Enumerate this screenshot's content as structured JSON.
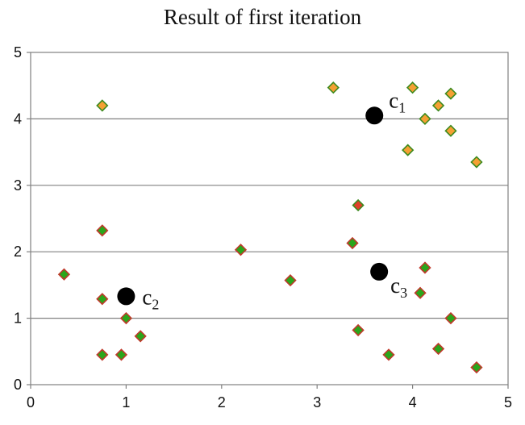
{
  "chart_data": {
    "type": "scatter",
    "title": "Result of first iteration",
    "xlabel": "",
    "ylabel": "",
    "xlim": [
      0,
      5
    ],
    "ylim": [
      0,
      5
    ],
    "xticks": [
      "0",
      "1",
      "2",
      "3",
      "4",
      "5"
    ],
    "yticks": [
      "0",
      "1",
      "2",
      "3",
      "4",
      "5"
    ],
    "grid": "horizontal",
    "colors": {
      "cluster1_fill": "#f5a033",
      "cluster1_edge": "#3c8a1e",
      "cluster2_fill": "#2aa61b",
      "cluster2_edge": "#c0392b",
      "cluster3_fill": "#2aa61b",
      "cluster3_edge": "#c0392b",
      "cluster3_alt_fill": "#e0402a",
      "cluster3_alt_edge": "#3c8a1e",
      "centroid": "#000000",
      "grid": "#808080"
    },
    "series": [
      {
        "cluster": "c1",
        "marker": "diamond",
        "points": [
          [
            0.75,
            4.2
          ],
          [
            3.17,
            4.47
          ],
          [
            4.0,
            4.47
          ],
          [
            4.27,
            4.2
          ],
          [
            4.4,
            4.38
          ],
          [
            4.13,
            4.0
          ],
          [
            4.4,
            3.82
          ],
          [
            3.95,
            3.53
          ],
          [
            4.67,
            3.35
          ]
        ]
      },
      {
        "cluster": "c2",
        "marker": "diamond",
        "points": [
          [
            0.75,
            2.32
          ],
          [
            0.35,
            1.66
          ],
          [
            0.75,
            1.29
          ],
          [
            1.0,
            1.0
          ],
          [
            1.15,
            0.73
          ],
          [
            0.75,
            0.45
          ],
          [
            0.95,
            0.45
          ],
          [
            2.2,
            2.03
          ]
        ]
      },
      {
        "cluster": "c3",
        "marker": "diamond",
        "points": [
          [
            3.43,
            2.7
          ],
          [
            3.37,
            2.13
          ],
          [
            4.13,
            1.76
          ],
          [
            2.72,
            1.57
          ],
          [
            4.08,
            1.38
          ],
          [
            4.4,
            1.0
          ],
          [
            3.43,
            0.82
          ],
          [
            3.75,
            0.45
          ],
          [
            4.27,
            0.54
          ],
          [
            4.67,
            0.26
          ]
        ],
        "alt_points": [
          [
            3.43,
            2.7
          ]
        ]
      }
    ],
    "centroids": [
      {
        "label": "c",
        "subscript": "1",
        "x": 3.6,
        "y": 4.05
      },
      {
        "label": "c",
        "subscript": "2",
        "x": 1.0,
        "y": 1.33
      },
      {
        "label": "c",
        "subscript": "3",
        "x": 3.65,
        "y": 1.7
      }
    ]
  }
}
